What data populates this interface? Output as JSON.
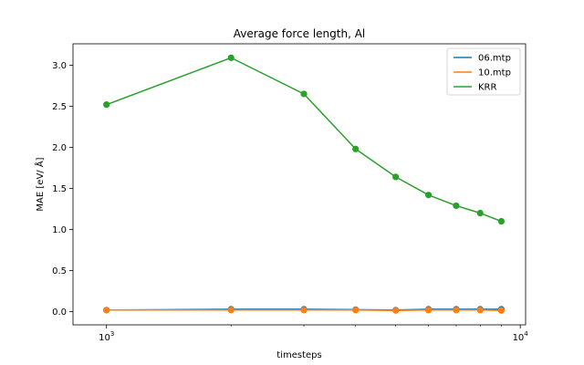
{
  "chart_data": {
    "type": "line",
    "title": "Average force length, Al",
    "xlabel": "timesteps",
    "ylabel": "MAE [eV/ Å]",
    "x_scale": "log",
    "xlim": [
      830,
      10300
    ],
    "ylim": [
      -0.16,
      3.26
    ],
    "x_major_ticks": [
      {
        "value": 1000,
        "base": "10",
        "exp": "3"
      },
      {
        "value": 10000,
        "base": "10",
        "exp": "4"
      }
    ],
    "x_minor_ticks": [
      2000,
      3000,
      4000,
      5000,
      6000,
      7000,
      8000,
      9000
    ],
    "y_ticks": [
      {
        "value": 0.0,
        "label": "0.0"
      },
      {
        "value": 0.5,
        "label": "0.5"
      },
      {
        "value": 1.0,
        "label": "1.0"
      },
      {
        "value": 1.5,
        "label": "1.5"
      },
      {
        "value": 2.0,
        "label": "2.0"
      },
      {
        "value": 2.5,
        "label": "2.5"
      },
      {
        "value": 3.0,
        "label": "3.0"
      }
    ],
    "grid": false,
    "legend_position": "top-right",
    "x": [
      1000,
      2000,
      3000,
      4000,
      5000,
      6000,
      7000,
      8000,
      9000
    ],
    "series": [
      {
        "name": "06.mtp",
        "color": "#1f77b4",
        "values": [
          0.02,
          0.03,
          0.03,
          0.025,
          0.02,
          0.03,
          0.03,
          0.03,
          0.03
        ]
      },
      {
        "name": "10.mtp",
        "color": "#ff7f0e",
        "values": [
          0.02,
          0.02,
          0.02,
          0.02,
          0.015,
          0.02,
          0.02,
          0.02,
          0.015
        ]
      },
      {
        "name": "KRR",
        "color": "#2ca02c",
        "values": [
          2.52,
          3.09,
          2.65,
          1.98,
          1.64,
          1.42,
          1.29,
          1.2,
          1.1
        ]
      }
    ]
  }
}
